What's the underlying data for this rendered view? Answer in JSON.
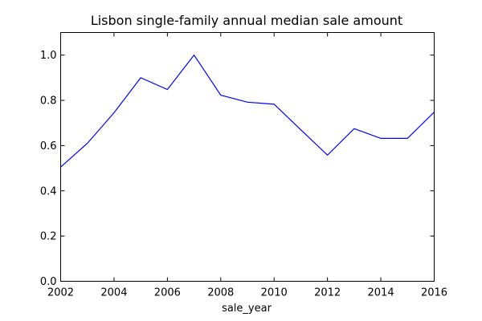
{
  "chart_data": {
    "type": "line",
    "title": "Lisbon single-family annual median sale amount",
    "xlabel": "sale_year",
    "ylabel": "",
    "xlim": [
      2002,
      2016
    ],
    "ylim": [
      0.0,
      1.1
    ],
    "grid": false,
    "xticks": [
      "2002",
      "2004",
      "2006",
      "2008",
      "2010",
      "2012",
      "2014",
      "2016"
    ],
    "yticks": [
      "0.0",
      "0.2",
      "0.4",
      "0.6",
      "0.8",
      "1.0"
    ],
    "x": [
      2002,
      2003,
      2004,
      2005,
      2006,
      2007,
      2008,
      2009,
      2010,
      2011,
      2012,
      2013,
      2014,
      2015,
      2016
    ],
    "series": [
      {
        "values": [
          0.505,
          0.61,
          0.745,
          0.9,
          0.848,
          1.0,
          0.823,
          0.792,
          0.783,
          0.67,
          0.558,
          0.675,
          0.632,
          0.632,
          0.748
        ],
        "color": "#0000ff"
      }
    ]
  }
}
